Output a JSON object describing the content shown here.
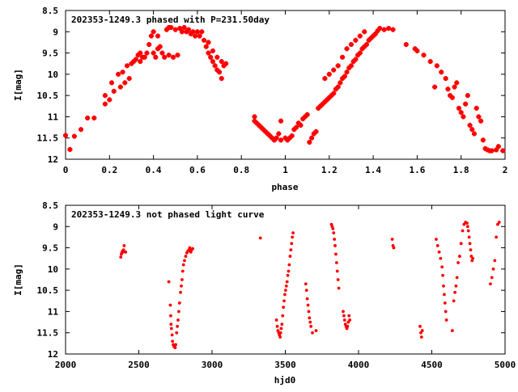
{
  "chart_data": [
    {
      "type": "scatter",
      "title": "202353-1249.3 phased with P=231.50day",
      "xlabel": "phase",
      "ylabel": "I[mag]",
      "xlim": [
        0,
        2
      ],
      "ylim": [
        12,
        8.5
      ],
      "y_inverted": true,
      "grid": false,
      "legend": "none",
      "color": "#ff0000",
      "marker": "plus-bold",
      "x_ticks": [
        "0",
        "0.2",
        "0.4",
        "0.6",
        "0.8",
        "1",
        "1.2",
        "1.4",
        "1.6",
        "1.8",
        "2"
      ],
      "y_ticks": [
        "8.5",
        "9",
        "9.5",
        "10",
        "10.5",
        "11",
        "11.5",
        "12"
      ],
      "x_tick_values": [
        0,
        0.2,
        0.4,
        0.6,
        0.8,
        1,
        1.2,
        1.4,
        1.6,
        1.8,
        2
      ],
      "y_tick_values": [
        8.5,
        9,
        9.5,
        10,
        10.5,
        11,
        11.5,
        12
      ],
      "points": [
        [
          0.0,
          11.44
        ],
        [
          0.02,
          11.77
        ],
        [
          0.04,
          11.46
        ],
        [
          0.07,
          11.3
        ],
        [
          0.1,
          11.03
        ],
        [
          0.13,
          11.03
        ],
        [
          0.18,
          10.7
        ],
        [
          0.18,
          10.5
        ],
        [
          0.2,
          10.6
        ],
        [
          0.21,
          10.2
        ],
        [
          0.22,
          10.4
        ],
        [
          0.24,
          10.0
        ],
        [
          0.25,
          10.3
        ],
        [
          0.26,
          9.95
        ],
        [
          0.27,
          10.2
        ],
        [
          0.28,
          9.8
        ],
        [
          0.29,
          10.1
        ],
        [
          0.3,
          9.75
        ],
        [
          0.31,
          9.7
        ],
        [
          0.32,
          9.65
        ],
        [
          0.33,
          9.55
        ],
        [
          0.34,
          9.5
        ],
        [
          0.34,
          9.7
        ],
        [
          0.35,
          9.6
        ],
        [
          0.36,
          9.6
        ],
        [
          0.37,
          9.5
        ],
        [
          0.38,
          9.3
        ],
        [
          0.39,
          9.1
        ],
        [
          0.4,
          9.5
        ],
        [
          0.4,
          9.0
        ],
        [
          0.41,
          9.6
        ],
        [
          0.42,
          9.4
        ],
        [
          0.42,
          9.1
        ],
        [
          0.43,
          9.35
        ],
        [
          0.44,
          9.5
        ],
        [
          0.45,
          9.6
        ],
        [
          0.46,
          8.95
        ],
        [
          0.47,
          8.9
        ],
        [
          0.47,
          9.55
        ],
        [
          0.48,
          8.9
        ],
        [
          0.49,
          9.6
        ],
        [
          0.5,
          8.95
        ],
        [
          0.51,
          9.55
        ],
        [
          0.52,
          8.92
        ],
        [
          0.53,
          9.0
        ],
        [
          0.54,
          8.9
        ],
        [
          0.55,
          9.0
        ],
        [
          0.56,
          8.95
        ],
        [
          0.57,
          9.05
        ],
        [
          0.58,
          9.0
        ],
        [
          0.59,
          9.1
        ],
        [
          0.6,
          9.0
        ],
        [
          0.61,
          9.1
        ],
        [
          0.62,
          9.0
        ],
        [
          0.63,
          9.2
        ],
        [
          0.64,
          9.35
        ],
        [
          0.65,
          9.5
        ],
        [
          0.66,
          9.6
        ],
        [
          0.67,
          9.7
        ],
        [
          0.68,
          9.8
        ],
        [
          0.69,
          9.9
        ],
        [
          0.7,
          9.95
        ],
        [
          0.71,
          10.1
        ],
        [
          0.72,
          9.8
        ],
        [
          0.73,
          9.75
        ],
        [
          0.65,
          9.25
        ],
        [
          0.67,
          9.45
        ],
        [
          0.69,
          9.6
        ],
        [
          0.71,
          9.7
        ],
        [
          0.86,
          11.0
        ],
        [
          0.86,
          11.1
        ],
        [
          0.87,
          11.15
        ],
        [
          0.88,
          11.2
        ],
        [
          0.89,
          11.25
        ],
        [
          0.9,
          11.3
        ],
        [
          0.91,
          11.35
        ],
        [
          0.92,
          11.4
        ],
        [
          0.93,
          11.45
        ],
        [
          0.94,
          11.5
        ],
        [
          0.95,
          11.55
        ],
        [
          0.96,
          11.5
        ],
        [
          0.97,
          11.4
        ],
        [
          0.98,
          11.1
        ],
        [
          0.98,
          11.55
        ],
        [
          1.0,
          11.5
        ],
        [
          1.01,
          11.55
        ],
        [
          1.02,
          11.5
        ],
        [
          1.03,
          11.45
        ],
        [
          1.04,
          11.3
        ],
        [
          1.05,
          11.25
        ],
        [
          1.06,
          11.15
        ],
        [
          1.07,
          11.2
        ],
        [
          1.08,
          11.05
        ],
        [
          1.09,
          11.0
        ],
        [
          1.1,
          10.95
        ],
        [
          1.11,
          11.6
        ],
        [
          1.12,
          11.5
        ],
        [
          1.13,
          11.4
        ],
        [
          1.14,
          11.35
        ],
        [
          1.15,
          10.8
        ],
        [
          1.16,
          10.75
        ],
        [
          1.17,
          10.7
        ],
        [
          1.18,
          10.65
        ],
        [
          1.19,
          10.6
        ],
        [
          1.2,
          10.55
        ],
        [
          1.21,
          10.5
        ],
        [
          1.22,
          10.45
        ],
        [
          1.23,
          10.35
        ],
        [
          1.24,
          10.3
        ],
        [
          1.25,
          10.2
        ],
        [
          1.26,
          10.1
        ],
        [
          1.27,
          10.05
        ],
        [
          1.28,
          9.95
        ],
        [
          1.29,
          9.85
        ],
        [
          1.3,
          9.8
        ],
        [
          1.31,
          9.7
        ],
        [
          1.32,
          9.65
        ],
        [
          1.33,
          9.55
        ],
        [
          1.34,
          9.5
        ],
        [
          1.35,
          9.4
        ],
        [
          1.36,
          9.35
        ],
        [
          1.37,
          9.3
        ],
        [
          1.38,
          9.2
        ],
        [
          1.39,
          9.15
        ],
        [
          1.4,
          9.1
        ],
        [
          1.41,
          9.05
        ],
        [
          1.42,
          8.98
        ],
        [
          1.43,
          8.92
        ],
        [
          1.45,
          8.95
        ],
        [
          1.47,
          8.92
        ],
        [
          1.49,
          8.95
        ],
        [
          1.18,
          10.1
        ],
        [
          1.2,
          10.0
        ],
        [
          1.22,
          9.9
        ],
        [
          1.24,
          9.8
        ],
        [
          1.26,
          9.6
        ],
        [
          1.28,
          9.4
        ],
        [
          1.3,
          9.3
        ],
        [
          1.32,
          9.2
        ],
        [
          1.34,
          9.1
        ],
        [
          1.36,
          9.0
        ],
        [
          1.55,
          9.3
        ],
        [
          1.59,
          9.4
        ],
        [
          1.6,
          9.45
        ],
        [
          1.63,
          9.55
        ],
        [
          1.66,
          9.7
        ],
        [
          1.68,
          10.3
        ],
        [
          1.69,
          9.8
        ],
        [
          1.71,
          9.95
        ],
        [
          1.73,
          10.1
        ],
        [
          1.74,
          10.35
        ],
        [
          1.75,
          10.5
        ],
        [
          1.76,
          10.55
        ],
        [
          1.77,
          10.3
        ],
        [
          1.78,
          10.2
        ],
        [
          1.79,
          10.8
        ],
        [
          1.8,
          10.9
        ],
        [
          1.81,
          11.0
        ],
        [
          1.82,
          10.7
        ],
        [
          1.83,
          10.5
        ],
        [
          1.84,
          11.2
        ],
        [
          1.85,
          11.3
        ],
        [
          1.86,
          11.4
        ],
        [
          1.87,
          10.8
        ],
        [
          1.88,
          11.0
        ],
        [
          1.89,
          11.1
        ],
        [
          1.9,
          11.55
        ],
        [
          1.91,
          11.75
        ],
        [
          1.92,
          11.78
        ],
        [
          1.93,
          11.8
        ],
        [
          1.94,
          11.8
        ],
        [
          1.96,
          11.78
        ],
        [
          1.97,
          11.7
        ],
        [
          1.99,
          11.8
        ]
      ]
    },
    {
      "type": "scatter",
      "title": "202353-1249.3 not phased light curve",
      "xlabel": "hjd0",
      "ylabel": "I[mag]",
      "xlim": [
        2000,
        5000
      ],
      "ylim": [
        12,
        8.5
      ],
      "y_inverted": true,
      "grid": false,
      "legend": "none",
      "color": "#ff0000",
      "marker": "dot",
      "x_ticks": [
        "2000",
        "2500",
        "3000",
        "3500",
        "4000",
        "4500",
        "5000"
      ],
      "y_ticks": [
        "8.5",
        "9",
        "9.5",
        "10",
        "10.5",
        "11",
        "11.5",
        "12"
      ],
      "x_tick_values": [
        2000,
        2500,
        3000,
        3500,
        4000,
        4500,
        5000
      ],
      "y_tick_values": [
        8.5,
        9,
        9.5,
        10,
        10.5,
        11,
        11.5,
        12
      ],
      "points": [
        [
          2377,
          9.72
        ],
        [
          2381,
          9.65
        ],
        [
          2384,
          9.62
        ],
        [
          2388,
          9.58
        ],
        [
          2392,
          9.6
        ],
        [
          2396,
          9.55
        ],
        [
          2400,
          9.45
        ],
        [
          2410,
          9.6
        ],
        [
          2705,
          10.3
        ],
        [
          2715,
          10.85
        ],
        [
          2718,
          11.1
        ],
        [
          2720,
          11.3
        ],
        [
          2723,
          11.4
        ],
        [
          2727,
          11.55
        ],
        [
          2730,
          11.7
        ],
        [
          2735,
          11.78
        ],
        [
          2740,
          11.82
        ],
        [
          2744,
          11.8
        ],
        [
          2748,
          11.85
        ],
        [
          2752,
          11.78
        ],
        [
          2758,
          11.5
        ],
        [
          2763,
          11.35
        ],
        [
          2768,
          11.2
        ],
        [
          2773,
          11.0
        ],
        [
          2778,
          10.8
        ],
        [
          2785,
          10.55
        ],
        [
          2790,
          10.4
        ],
        [
          2795,
          10.25
        ],
        [
          2800,
          10.05
        ],
        [
          2805,
          9.9
        ],
        [
          2812,
          9.8
        ],
        [
          2820,
          9.7
        ],
        [
          2828,
          9.62
        ],
        [
          2835,
          9.58
        ],
        [
          2842,
          9.55
        ],
        [
          2848,
          9.5
        ],
        [
          2855,
          9.6
        ],
        [
          2860,
          9.55
        ],
        [
          2868,
          9.52
        ],
        [
          3330,
          9.27
        ],
        [
          3440,
          11.2
        ],
        [
          3445,
          11.35
        ],
        [
          3450,
          11.45
        ],
        [
          3455,
          11.5
        ],
        [
          3460,
          11.55
        ],
        [
          3465,
          11.6
        ],
        [
          3468,
          11.5
        ],
        [
          3472,
          11.4
        ],
        [
          3477,
          11.3
        ],
        [
          3482,
          11.1
        ],
        [
          3487,
          10.9
        ],
        [
          3492,
          10.75
        ],
        [
          3497,
          10.6
        ],
        [
          3502,
          10.5
        ],
        [
          3507,
          10.4
        ],
        [
          3512,
          10.3
        ],
        [
          3517,
          10.15
        ],
        [
          3522,
          10.05
        ],
        [
          3527,
          9.9
        ],
        [
          3533,
          9.7
        ],
        [
          3538,
          9.55
        ],
        [
          3543,
          9.4
        ],
        [
          3548,
          9.25
        ],
        [
          3553,
          9.15
        ],
        [
          3640,
          10.35
        ],
        [
          3645,
          10.5
        ],
        [
          3650,
          10.7
        ],
        [
          3655,
          10.85
        ],
        [
          3660,
          11.0
        ],
        [
          3665,
          11.15
        ],
        [
          3670,
          11.25
        ],
        [
          3675,
          11.35
        ],
        [
          3685,
          11.5
        ],
        [
          3710,
          11.45
        ],
        [
          3815,
          8.95
        ],
        [
          3820,
          9.0
        ],
        [
          3825,
          9.05
        ],
        [
          3830,
          9.15
        ],
        [
          3835,
          9.3
        ],
        [
          3840,
          9.45
        ],
        [
          3845,
          9.65
        ],
        [
          3850,
          9.85
        ],
        [
          3855,
          10.05
        ],
        [
          3860,
          10.25
        ],
        [
          3865,
          10.45
        ],
        [
          3895,
          11.0
        ],
        [
          3900,
          11.1
        ],
        [
          3905,
          11.2
        ],
        [
          3910,
          11.3
        ],
        [
          3915,
          11.35
        ],
        [
          3920,
          11.4
        ],
        [
          3925,
          11.35
        ],
        [
          3930,
          11.25
        ],
        [
          3935,
          11.1
        ],
        [
          3940,
          11.2
        ],
        [
          4230,
          9.3
        ],
        [
          4235,
          9.45
        ],
        [
          4240,
          9.5
        ],
        [
          4420,
          11.35
        ],
        [
          4425,
          11.5
        ],
        [
          4430,
          11.6
        ],
        [
          4435,
          11.45
        ],
        [
          4530,
          9.3
        ],
        [
          4540,
          9.45
        ],
        [
          4550,
          9.6
        ],
        [
          4560,
          9.75
        ],
        [
          4570,
          9.95
        ],
        [
          4575,
          10.15
        ],
        [
          4580,
          10.4
        ],
        [
          4585,
          10.6
        ],
        [
          4590,
          10.8
        ],
        [
          4595,
          11.0
        ],
        [
          4600,
          11.2
        ],
        [
          4640,
          11.45
        ],
        [
          4650,
          10.75
        ],
        [
          4658,
          10.55
        ],
        [
          4665,
          10.4
        ],
        [
          4672,
          10.2
        ],
        [
          4680,
          9.85
        ],
        [
          4690,
          9.7
        ],
        [
          4700,
          9.4
        ],
        [
          4710,
          9.1
        ],
        [
          4720,
          8.95
        ],
        [
          4730,
          8.9
        ],
        [
          4740,
          8.92
        ],
        [
          4745,
          9.0
        ],
        [
          4750,
          9.1
        ],
        [
          4755,
          9.25
        ],
        [
          4760,
          9.4
        ],
        [
          4765,
          9.55
        ],
        [
          4770,
          9.7
        ],
        [
          4775,
          9.8
        ],
        [
          4780,
          9.75
        ],
        [
          4900,
          10.35
        ],
        [
          4910,
          10.2
        ],
        [
          4920,
          10.0
        ],
        [
          4930,
          9.8
        ],
        [
          4940,
          9.25
        ],
        [
          4950,
          8.95
        ],
        [
          4960,
          8.9
        ]
      ]
    }
  ]
}
